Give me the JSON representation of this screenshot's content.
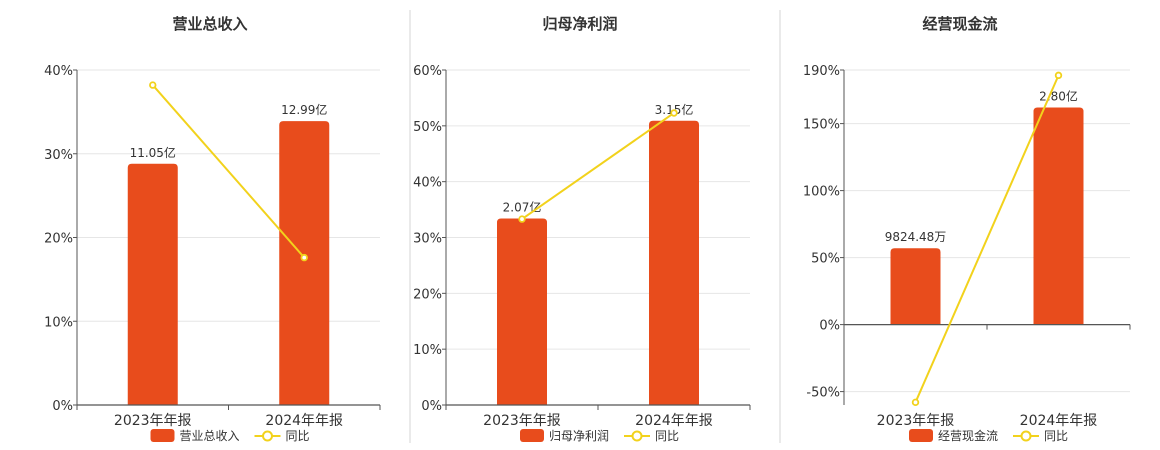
{
  "colors": {
    "bar": "#e84c1c",
    "line": "#f2d21c",
    "axis": "#555555",
    "grid": "#e6e6e6",
    "divider": "#d6d6d6",
    "text": "#333333"
  },
  "chart_data": [
    {
      "type": "bar",
      "title": "营业总收入",
      "categories": [
        "2023年年报",
        "2024年年报"
      ],
      "bar_labels": [
        "11.05亿",
        "12.99亿"
      ],
      "y_ticks": [
        "0%",
        "10%",
        "20%",
        "30%",
        "40%"
      ],
      "ylim": [
        0,
        40
      ],
      "series": [
        {
          "name": "营业总收入",
          "type": "bar",
          "values": [
            28.8,
            33.9
          ]
        },
        {
          "name": "同比",
          "type": "line",
          "values": [
            38.2,
            17.6
          ]
        }
      ],
      "legend": {
        "position": "bottom",
        "items": [
          "营业总收入",
          "同比"
        ]
      }
    },
    {
      "type": "bar",
      "title": "归母净利润",
      "categories": [
        "2023年年报",
        "2024年年报"
      ],
      "bar_labels": [
        "2.07亿",
        "3.15亿"
      ],
      "y_ticks": [
        "0%",
        "10%",
        "20%",
        "30%",
        "40%",
        "50%",
        "60%"
      ],
      "ylim": [
        0,
        60
      ],
      "series": [
        {
          "name": "归母净利润",
          "type": "bar",
          "values": [
            33.4,
            50.9
          ]
        },
        {
          "name": "同比",
          "type": "line",
          "values": [
            33.3,
            52.3
          ]
        }
      ],
      "legend": {
        "position": "bottom",
        "items": [
          "归母净利润",
          "同比"
        ]
      }
    },
    {
      "type": "bar",
      "title": "经营现金流",
      "categories": [
        "2023年年报",
        "2024年年报"
      ],
      "bar_labels": [
        "9824.48万",
        "2.80亿"
      ],
      "y_ticks": [
        "-50%",
        "0%",
        "50%",
        "100%",
        "150%",
        "190%"
      ],
      "ylim": [
        -60,
        190
      ],
      "series": [
        {
          "name": "经营现金流",
          "type": "bar",
          "values": [
            57,
            162
          ]
        },
        {
          "name": "同比",
          "type": "line",
          "values": [
            -58,
            186
          ]
        }
      ],
      "legend": {
        "position": "bottom",
        "items": [
          "经营现金流",
          "同比"
        ]
      }
    }
  ]
}
